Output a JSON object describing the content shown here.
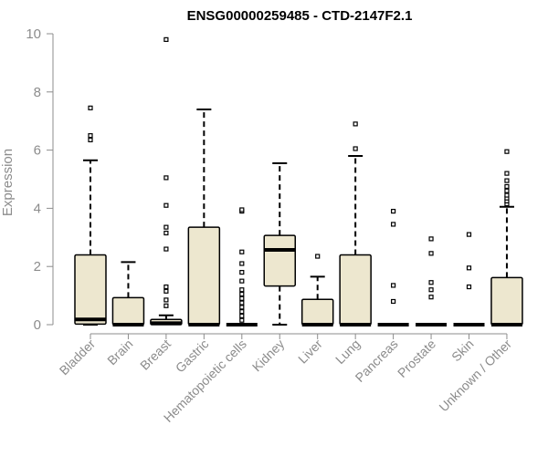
{
  "chart_data": {
    "type": "boxplot",
    "title": "ENSG00000259485 - CTD-2147F2.1",
    "ylabel": "Expression",
    "xlabel": "",
    "ylim": [
      0,
      10
    ],
    "yticks": [
      "0",
      "2",
      "4",
      "6",
      "8",
      "10"
    ],
    "grid": false,
    "legend": "none",
    "colors": {
      "box_fill": "#ede7cf",
      "box_stroke": "#000000",
      "axis": "#8c8c8c",
      "title": "#000000"
    },
    "categories": [
      "Bladder",
      "Brain",
      "Breast",
      "Gastric",
      "Hematopoietic cells",
      "Kidney",
      "Liver",
      "Lung",
      "Pancreas",
      "Prostate",
      "Skin",
      "Unknown / Other"
    ],
    "boxes": [
      {
        "q1": 0.02,
        "median": 0.18,
        "q3": 2.4,
        "whisker_low": 0,
        "whisker_high": 5.65,
        "outliers": [
          6.35,
          6.5,
          7.45
        ]
      },
      {
        "q1": 0,
        "median": 0,
        "q3": 0.93,
        "whisker_low": 0,
        "whisker_high": 2.15,
        "outliers": []
      },
      {
        "q1": 0,
        "median": 0.05,
        "q3": 0.18,
        "whisker_low": 0,
        "whisker_high": 0.32,
        "outliers": [
          0.65,
          0.85,
          1.15,
          1.3,
          2.6,
          3.15,
          3.35,
          4.1,
          5.05,
          9.8
        ]
      },
      {
        "q1": 0,
        "median": 0,
        "q3": 3.35,
        "whisker_low": 0,
        "whisker_high": 7.4,
        "outliers": []
      },
      {
        "q1": 0,
        "median": 0,
        "q3": 0,
        "whisker_low": 0,
        "whisker_high": 0,
        "outliers": [
          0.15,
          0.3,
          0.45,
          0.6,
          0.75,
          0.9,
          1.05,
          1.2,
          1.5,
          1.8,
          2.1,
          2.5,
          3.9,
          3.95
        ]
      },
      {
        "q1": 1.33,
        "median": 2.57,
        "q3": 3.07,
        "whisker_low": 0,
        "whisker_high": 5.55,
        "outliers": []
      },
      {
        "q1": 0,
        "median": 0,
        "q3": 0.87,
        "whisker_low": 0,
        "whisker_high": 1.65,
        "outliers": [
          2.35
        ]
      },
      {
        "q1": 0,
        "median": 0,
        "q3": 2.4,
        "whisker_low": 0,
        "whisker_high": 5.8,
        "outliers": [
          6.05,
          6.9
        ]
      },
      {
        "q1": 0,
        "median": 0,
        "q3": 0,
        "whisker_low": 0,
        "whisker_high": 0,
        "outliers": [
          0.8,
          1.35,
          3.45,
          3.9
        ]
      },
      {
        "q1": 0,
        "median": 0,
        "q3": 0,
        "whisker_low": 0,
        "whisker_high": 0,
        "outliers": [
          0.95,
          1.2,
          1.45,
          2.45,
          2.95
        ]
      },
      {
        "q1": 0,
        "median": 0,
        "q3": 0,
        "whisker_low": 0,
        "whisker_high": 0,
        "outliers": [
          1.3,
          1.95,
          3.1
        ]
      },
      {
        "q1": 0,
        "median": 0,
        "q3": 1.62,
        "whisker_low": 0,
        "whisker_high": 4.05,
        "outliers": [
          4.15,
          4.25,
          4.35,
          4.45,
          4.6,
          4.75,
          4.95,
          5.2,
          5.95
        ]
      }
    ]
  }
}
